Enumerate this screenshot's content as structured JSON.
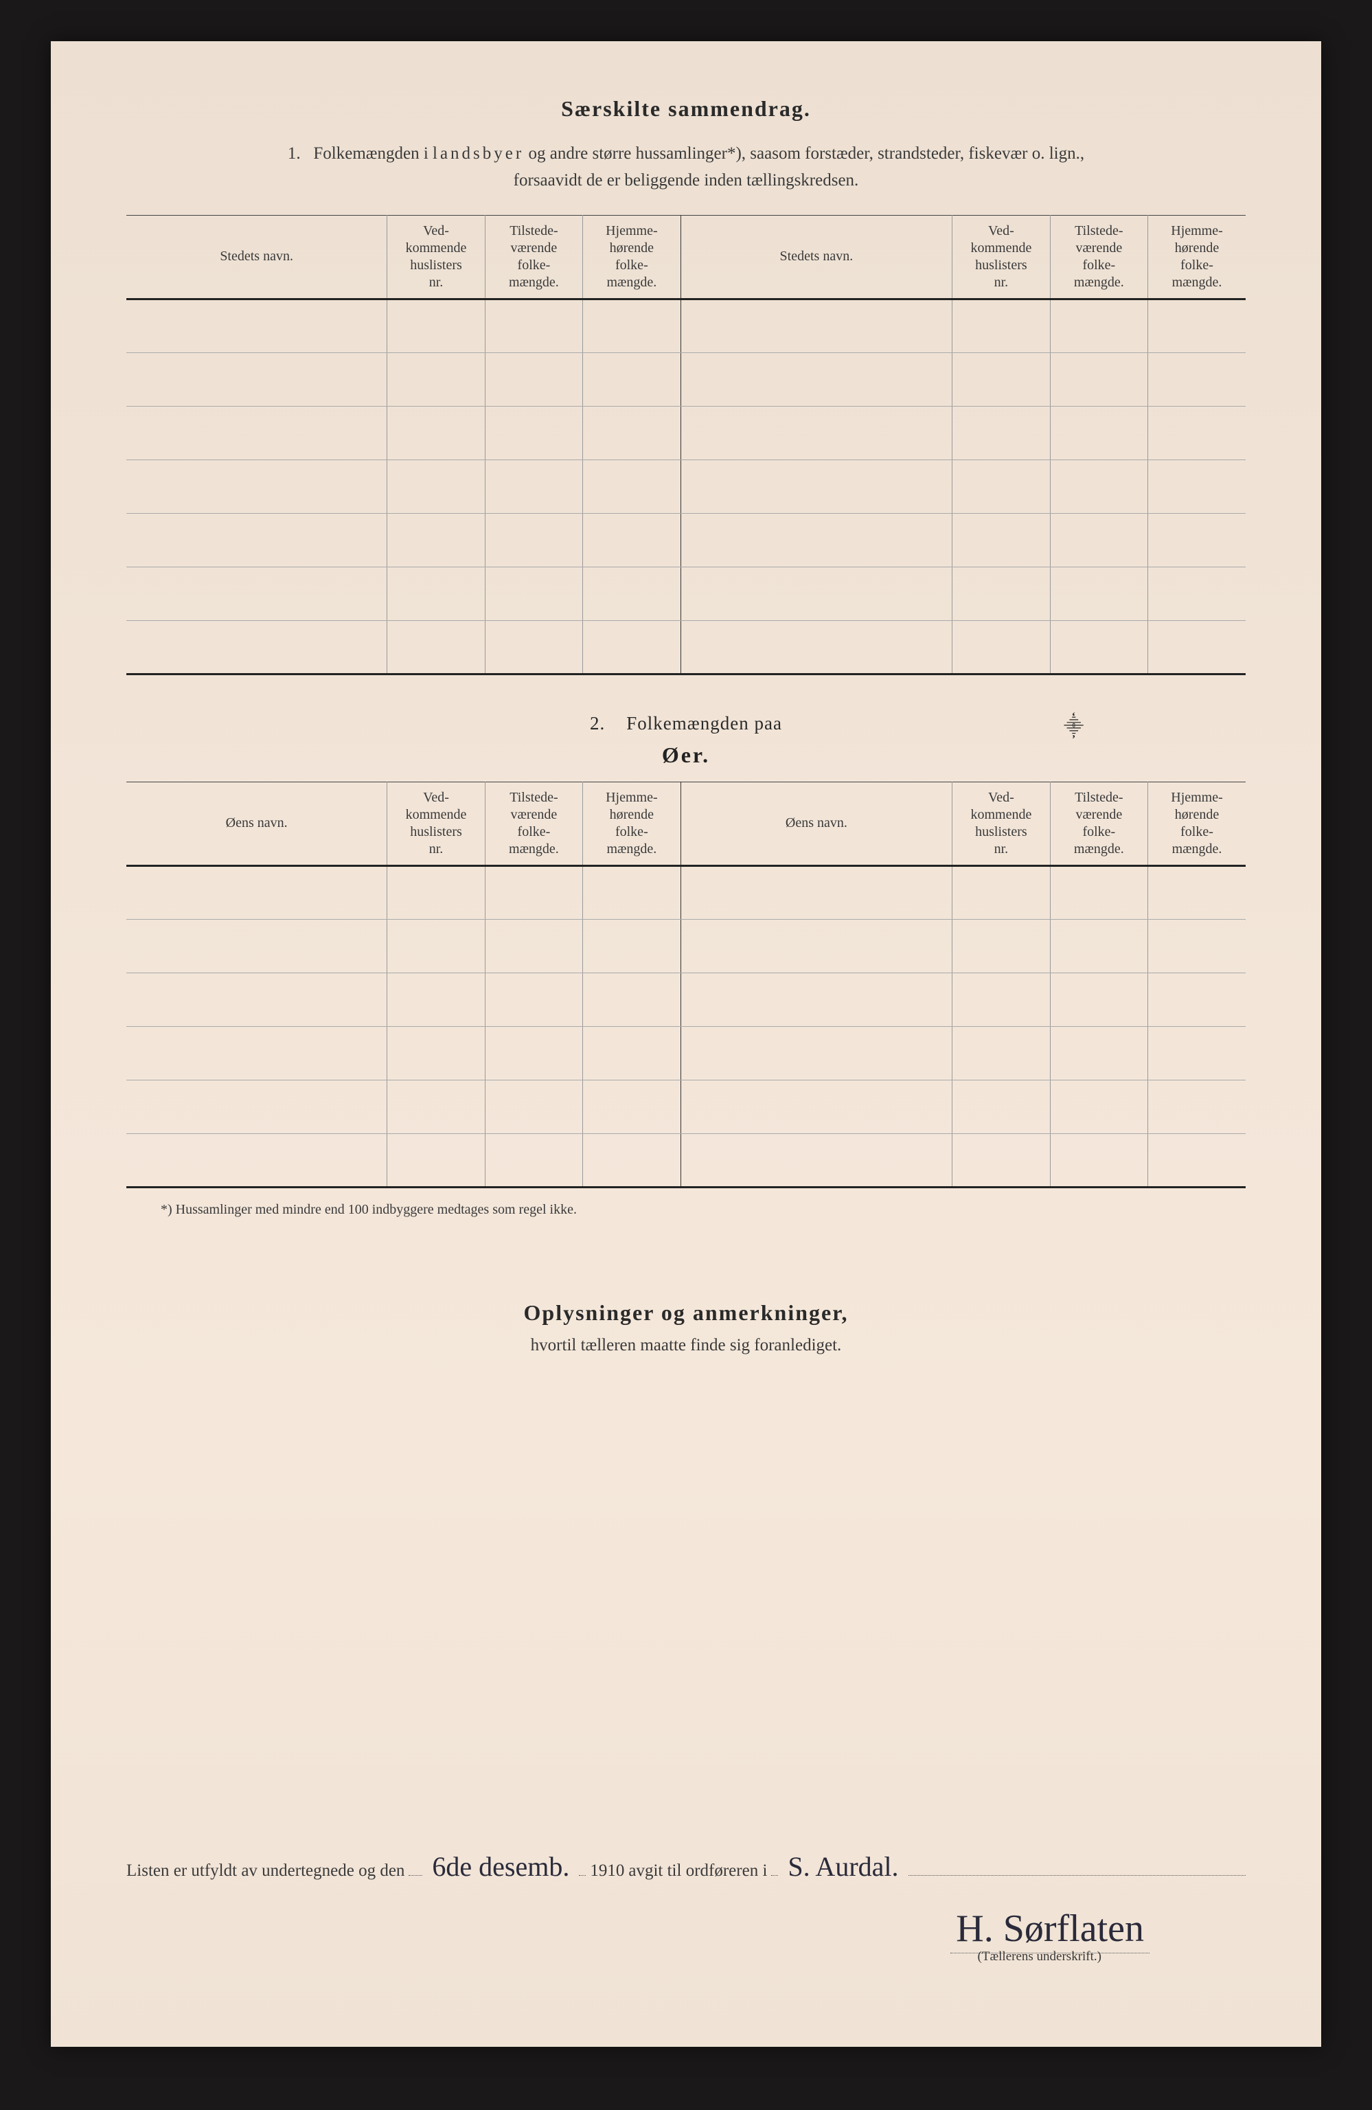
{
  "page": {
    "background_color": "#f0e3d5",
    "text_color": "#2a2a2a",
    "border_color_heavy": "#222222",
    "border_color_light": "#999999"
  },
  "section1": {
    "title": "Særskilte sammendrag.",
    "intro_num": "1.",
    "intro_text_a": "Folkemængden i ",
    "intro_spaced": "landsbyer",
    "intro_text_b": " og andre større hussamlinger*), saasom forstæder, strandsteder, fiskevær o. lign.,",
    "intro_line2": "forsaavidt de er beliggende inden tællingskredsen.",
    "headers": {
      "name": "Stedets navn.",
      "col2": "Ved-\nkommende\nhuslisters\nnr.",
      "col3": "Tilstede-\nværende\nfolke-\nmængde.",
      "col4": "Hjemme-\nhørende\nfolke-\nmængde."
    },
    "row_count": 7
  },
  "section2": {
    "title_prefix": "2.",
    "title": "Folkemængden paa",
    "subtitle": "Øer.",
    "headers": {
      "name": "Øens navn.",
      "col2": "Ved-\nkommende\nhuslisters\nnr.",
      "col3": "Tilstede-\nværende\nfolke-\nmængde.",
      "col4": "Hjemme-\nhørende\nfolke-\nmængde."
    },
    "row_count": 6
  },
  "footnote": "*)  Hussamlinger med mindre end 100 indbyggere medtages som regel ikke.",
  "oplysninger": {
    "title": "Oplysninger og anmerkninger,",
    "sub": "hvortil tælleren maatte finde sig foranlediget."
  },
  "signature": {
    "line_a": "Listen er utfyldt av undertegnede og den",
    "date_hand": "6de desemb.",
    "year": "1910",
    "line_b": "avgit til ordføreren i",
    "place_hand": "S. Aurdal.",
    "name_hand": "H. Sørflaten",
    "caption": "(Tællerens underskrift.)"
  }
}
